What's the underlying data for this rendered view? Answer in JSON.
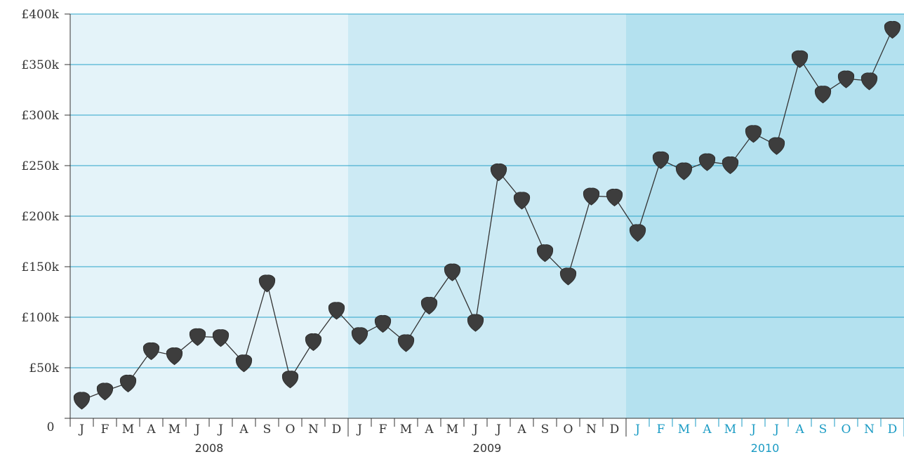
{
  "chart_data": {
    "type": "line",
    "title": "",
    "xlabel": "",
    "ylabel": "",
    "ylim": [
      0,
      400000
    ],
    "grid": "horizontal",
    "y_ticks": [
      {
        "value": 0,
        "label": "0"
      },
      {
        "value": 50000,
        "label": "£50k"
      },
      {
        "value": 100000,
        "label": "£100k"
      },
      {
        "value": 150000,
        "label": "£150k"
      },
      {
        "value": 200000,
        "label": "£200k"
      },
      {
        "value": 250000,
        "label": "£250k"
      },
      {
        "value": 300000,
        "label": "£300k"
      },
      {
        "value": 350000,
        "label": "£350k"
      },
      {
        "value": 400000,
        "label": "£400k"
      }
    ],
    "month_labels": [
      "J",
      "F",
      "M",
      "A",
      "M",
      "J",
      "J",
      "A",
      "S",
      "O",
      "N",
      "D"
    ],
    "years": [
      "2008",
      "2009",
      "2010"
    ],
    "highlighted_year": "2010",
    "series": [
      {
        "values": [
          18000,
          27000,
          35000,
          67000,
          62000,
          81000,
          80000,
          55000,
          134000,
          39000,
          76000,
          107000,
          82000,
          94000,
          75000,
          112000,
          145000,
          95000,
          244000,
          216000,
          164000,
          141000,
          220000,
          219000,
          184000,
          256000,
          245000,
          254000,
          251000,
          282000,
          270000,
          356000,
          321000,
          336000,
          334000,
          385000
        ]
      }
    ],
    "colors": {
      "band_2008": "#e4f3f9",
      "band_2009": "#cceaf4",
      "band_2010": "#b4e1ef",
      "gridline": "#2aa3c9",
      "line": "#333333",
      "marker": "#3d3d3d",
      "axis": "#333333",
      "highlight_label": "#1a9bc4"
    }
  }
}
